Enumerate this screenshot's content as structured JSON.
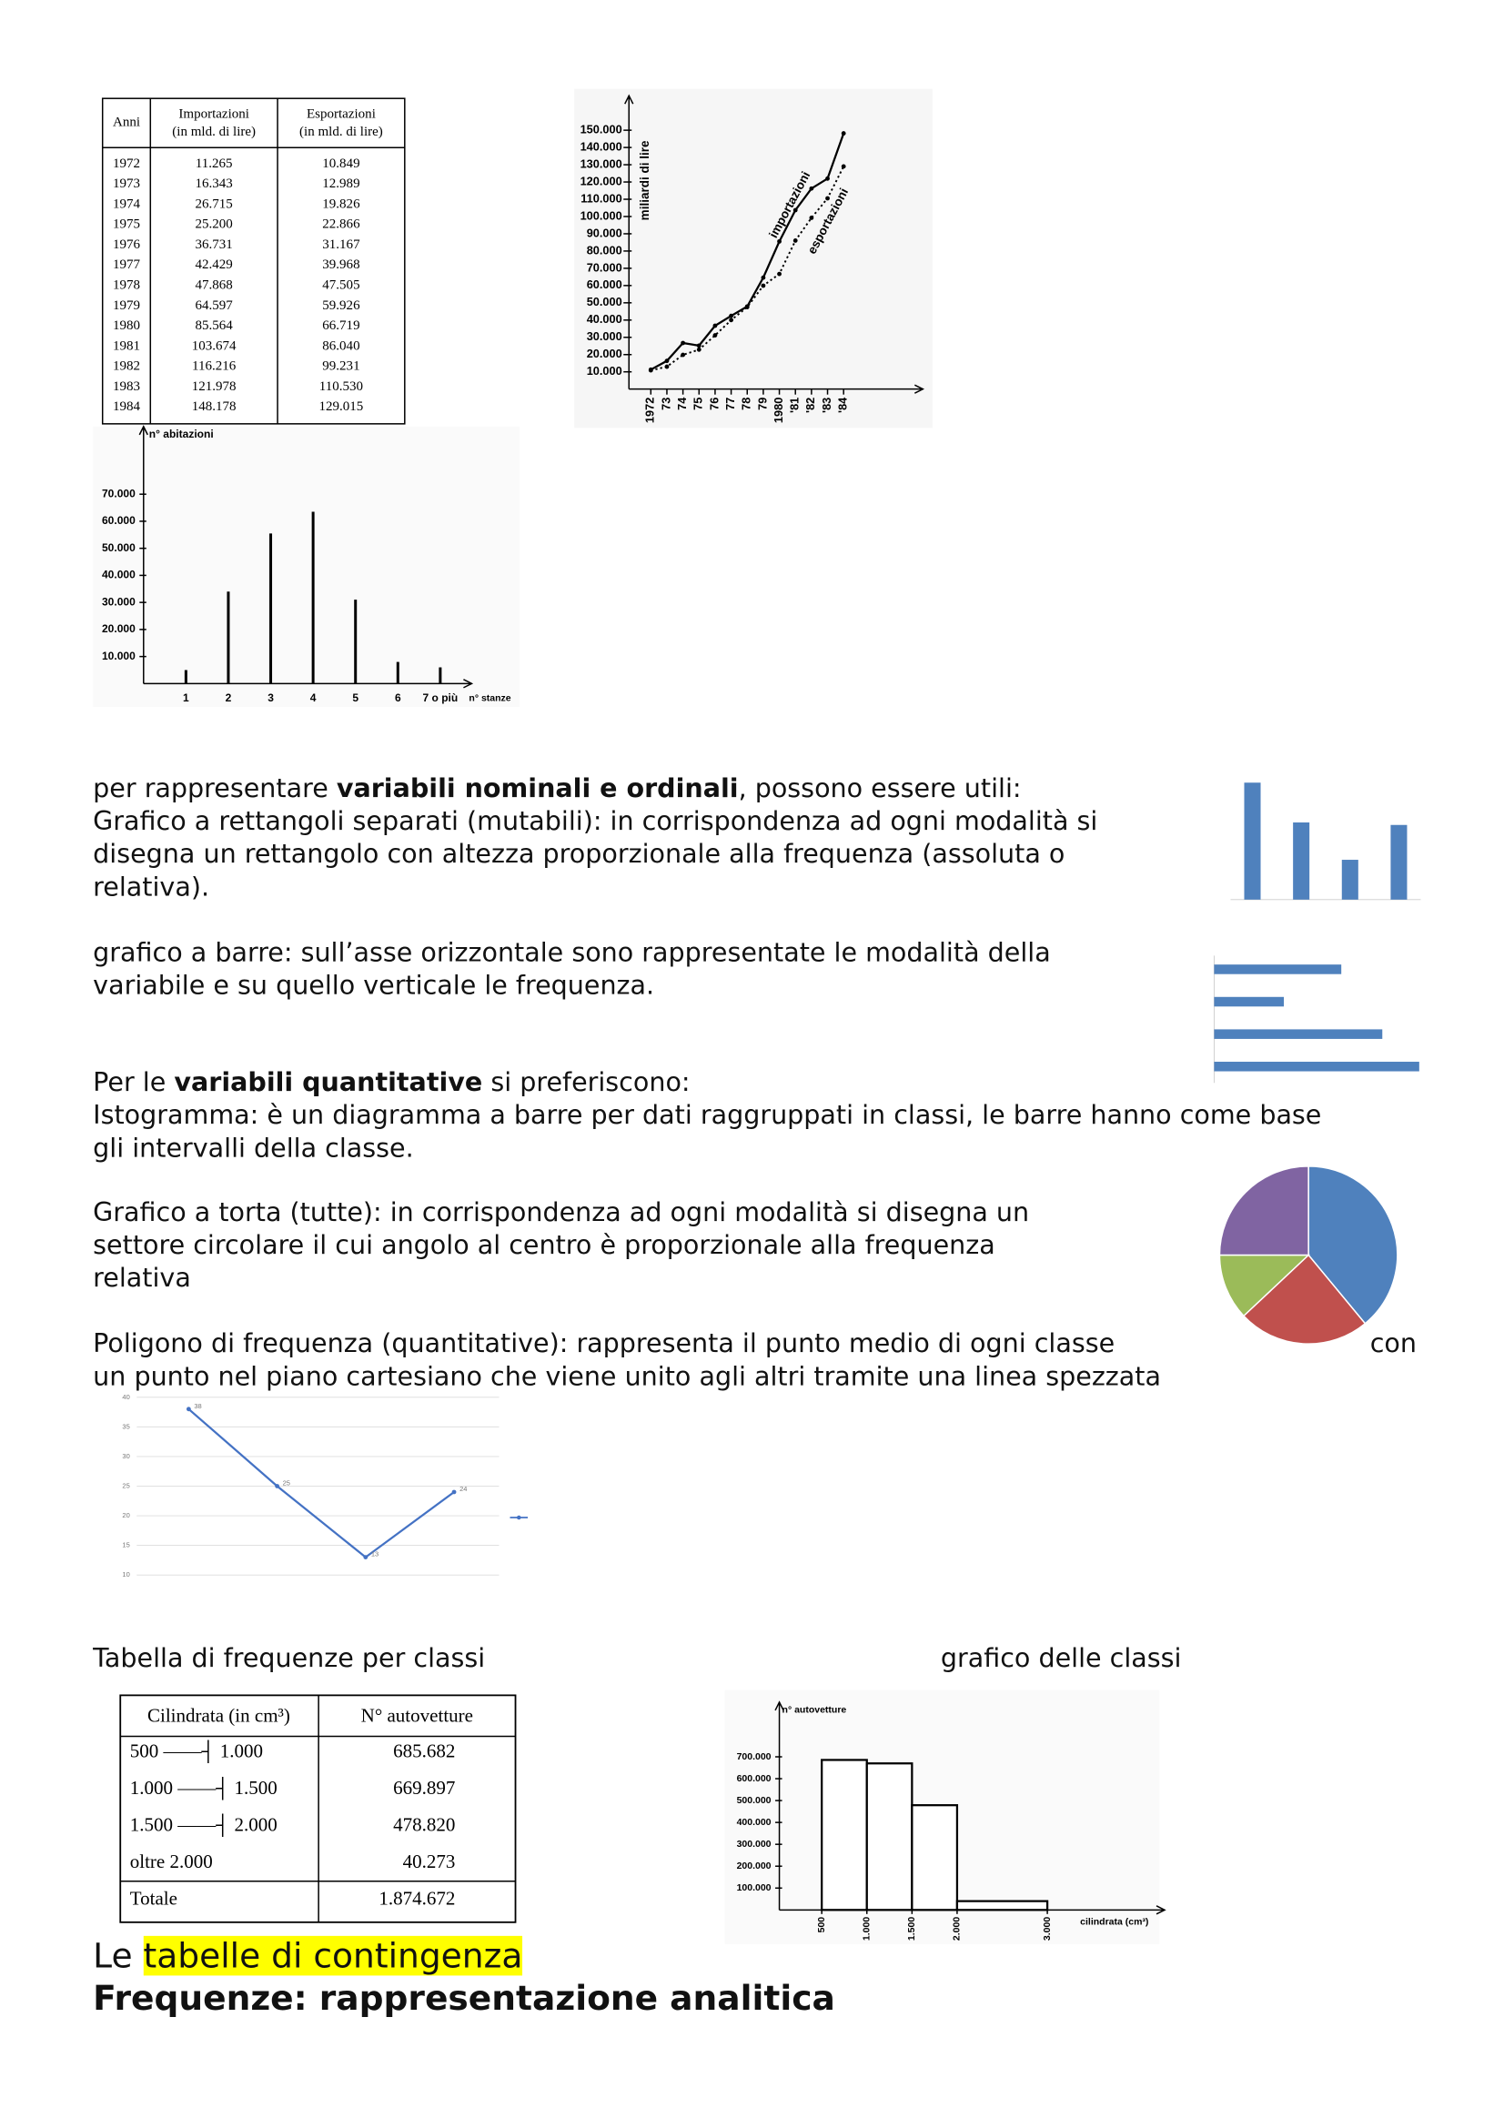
{
  "text": {
    "nominali": {
      "before": "per rappresentare ",
      "bold": "variabili nominali e ordinali",
      "after": ", possono essere utili:"
    },
    "rettangoli": [
      "Grafico a rettangoli separati (mutabili): in corrispondenza ad ogni modalità si",
      "disegna un rettangolo con altezza proporzionale alla frequenza (assoluta o",
      "relativa)."
    ],
    "barre": [
      "grafico a barre: sull’asse orizzontale sono rappresentate le modalità della",
      "variabile e su quello verticale le frequenza."
    ],
    "quantitative": {
      "before": "Per le ",
      "bold": "variabili quantitative",
      "after": " si preferiscono:"
    },
    "istogramma": [
      "Istogramma: è un diagramma a barre per dati raggruppati in classi, le barre hanno come base",
      "gli intervalli della classe."
    ],
    "torta": [
      "Grafico a torta (tutte): in corrispondenza ad ogni modalità si disegna un",
      "settore circolare il cui angolo al centro è proporzionale alla frequenza",
      "relativa"
    ],
    "poligono": [
      "Poligono di frequenza (quantitative): rappresenta il punto medio di ogni classe",
      "con",
      "un punto nel piano cartesiano che viene unito agli altri tramite una linea spezzata"
    ],
    "tabella_label": "Tabella di frequenze per classi",
    "grafico_label": "grafico delle classi",
    "contingenza": {
      "before": "Le ",
      "highlight": "tabelle di contingenza"
    },
    "frequenze": "Frequenze: rappresentazione analitica"
  },
  "table1": {
    "header": [
      [
        "Anni"
      ],
      [
        "Importazioni",
        "(in mld. di lire)"
      ],
      [
        "Esportazioni",
        "(in mld. di lire)"
      ]
    ],
    "rows": [
      [
        "1972",
        "11.265",
        "10.849"
      ],
      [
        "1973",
        "16.343",
        "12.989"
      ],
      [
        "1974",
        "26.715",
        "19.826"
      ],
      [
        "1975",
        "25.200",
        "22.866"
      ],
      [
        "1976",
        "36.731",
        "31.167"
      ],
      [
        "1977",
        "42.429",
        "39.968"
      ],
      [
        "1978",
        "47.868",
        "47.505"
      ],
      [
        "1979",
        "64.597",
        "59.926"
      ],
      [
        "1980",
        "85.564",
        "66.719"
      ],
      [
        "1981",
        "103.674",
        "86.040"
      ],
      [
        "1982",
        "116.216",
        "99.231"
      ],
      [
        "1983",
        "121.978",
        "110.530"
      ],
      [
        "1984",
        "148.178",
        "129.015"
      ]
    ]
  },
  "table2": {
    "header": [
      "Cilindrata (in cm³)",
      "N° autovetture"
    ],
    "rows": [
      [
        "500 ——┤ 1.000",
        "685.682"
      ],
      [
        "1.000 ——┤ 1.500",
        "669.897"
      ],
      [
        "1.500 ——┤ 2.000",
        "478.820"
      ],
      [
        "oltre 2.000",
        "40.273"
      ]
    ],
    "total": [
      "Totale",
      "1.874.672"
    ]
  },
  "chart_data": [
    {
      "type": "line",
      "y_label": "miliardi di lire",
      "categories": [
        "1972",
        "73",
        "74",
        "75",
        "76",
        "77",
        "78",
        "79",
        "1980",
        "'81",
        "'82",
        "'83",
        "'84"
      ],
      "series": [
        {
          "name": "importazioni",
          "color": "#000000",
          "style": "solid",
          "values": [
            11265,
            16343,
            26715,
            25200,
            36731,
            42429,
            47868,
            64597,
            85564,
            103674,
            116216,
            121978,
            148178
          ]
        },
        {
          "name": "esportazioni",
          "color": "#000000",
          "style": "dotted",
          "values": [
            10849,
            12989,
            19826,
            22866,
            31167,
            39968,
            47505,
            59926,
            66719,
            86040,
            99231,
            110530,
            129015
          ]
        }
      ],
      "ylim": [
        0,
        170000
      ],
      "yticks": [
        {
          "value": 10000,
          "label": "10.000"
        },
        {
          "value": 20000,
          "label": "20.000"
        },
        {
          "value": 30000,
          "label": "30.000"
        },
        {
          "value": 40000,
          "label": "40.000"
        },
        {
          "value": 50000,
          "label": "50.000"
        },
        {
          "value": 60000,
          "label": "60.000"
        },
        {
          "value": 70000,
          "label": "70.000"
        },
        {
          "value": 80000,
          "label": "80.000"
        },
        {
          "value": 90000,
          "label": "90.000"
        },
        {
          "value": 100000,
          "label": "100.000"
        },
        {
          "value": 110000,
          "label": "110.000"
        },
        {
          "value": 120000,
          "label": "120.000"
        },
        {
          "value": 130000,
          "label": "130.000"
        },
        {
          "value": 140000,
          "label": "140.000"
        },
        {
          "value": 150000,
          "label": "150.000"
        }
      ],
      "grid": false
    },
    {
      "type": "stem",
      "y_label": "n° abitazioni",
      "x_label": "n° stanze",
      "categories": [
        "1",
        "2",
        "3",
        "4",
        "5",
        "6",
        "7 o più"
      ],
      "values": [
        5000,
        34000,
        55500,
        63500,
        31000,
        8000,
        6000
      ],
      "color": "#000000",
      "ylim": [
        0,
        95000
      ],
      "yticks": [
        {
          "value": 10000,
          "label": "10.000"
        },
        {
          "value": 20000,
          "label": "20.000"
        },
        {
          "value": 30000,
          "label": "30.000"
        },
        {
          "value": 40000,
          "label": "40.000"
        },
        {
          "value": 50000,
          "label": "50.000"
        },
        {
          "value": 60000,
          "label": "60.000"
        },
        {
          "value": 70000,
          "label": "70.000"
        }
      ],
      "grid": false
    },
    {
      "type": "bar",
      "orientation": "vertical",
      "categories": [
        null,
        null,
        null,
        null
      ],
      "values": [
        4.7,
        3.1,
        1.6,
        3.0
      ],
      "color": "#4f81bd",
      "ylim": [
        0,
        5
      ]
    },
    {
      "type": "bar",
      "orientation": "horizontal",
      "categories": [
        null,
        null,
        null,
        null
      ],
      "values": [
        3.1,
        1.7,
        4.1,
        5.0
      ],
      "color": "#4f81bd",
      "xlim": [
        0,
        6
      ]
    },
    {
      "type": "pie",
      "values": [
        39,
        24,
        12,
        25
      ],
      "colors": [
        "#4f81bd",
        "#c0504d",
        "#9bbb59",
        "#8064a2"
      ]
    },
    {
      "type": "line",
      "categories": [
        null,
        null,
        null,
        null
      ],
      "values": [
        38,
        25,
        13,
        24
      ],
      "color": "#4472c4",
      "ylim": [
        10,
        40
      ],
      "yticks": [
        10,
        15,
        20,
        25,
        30,
        35,
        40
      ],
      "grid": true,
      "data_labels": true
    },
    {
      "type": "histogram",
      "y_label": "n° autovetture",
      "x_label": "cilindrata (cm³)",
      "bins": [
        500,
        1000,
        1500,
        2000,
        3000
      ],
      "values": [
        685682,
        669897,
        478820,
        40273
      ],
      "color": "#ffffff",
      "xlim": [
        30,
        4300
      ],
      "xticks": [
        500,
        {
          "value": 1000,
          "label": "1.000"
        },
        {
          "value": 1500,
          "label": "1.500"
        },
        {
          "value": 2000,
          "label": "2.000"
        },
        {
          "value": 3000,
          "label": "3.000"
        }
      ],
      "ylim": [
        0,
        950000
      ],
      "yticks": [
        {
          "value": 100000,
          "label": "100.000"
        },
        {
          "value": 200000,
          "label": "200.000"
        },
        {
          "value": 300000,
          "label": "300.000"
        },
        {
          "value": 400000,
          "label": "400.000"
        },
        {
          "value": 500000,
          "label": "500.000"
        },
        {
          "value": 600000,
          "label": "600.000"
        },
        {
          "value": 700000,
          "label": "700.000"
        }
      ]
    }
  ]
}
